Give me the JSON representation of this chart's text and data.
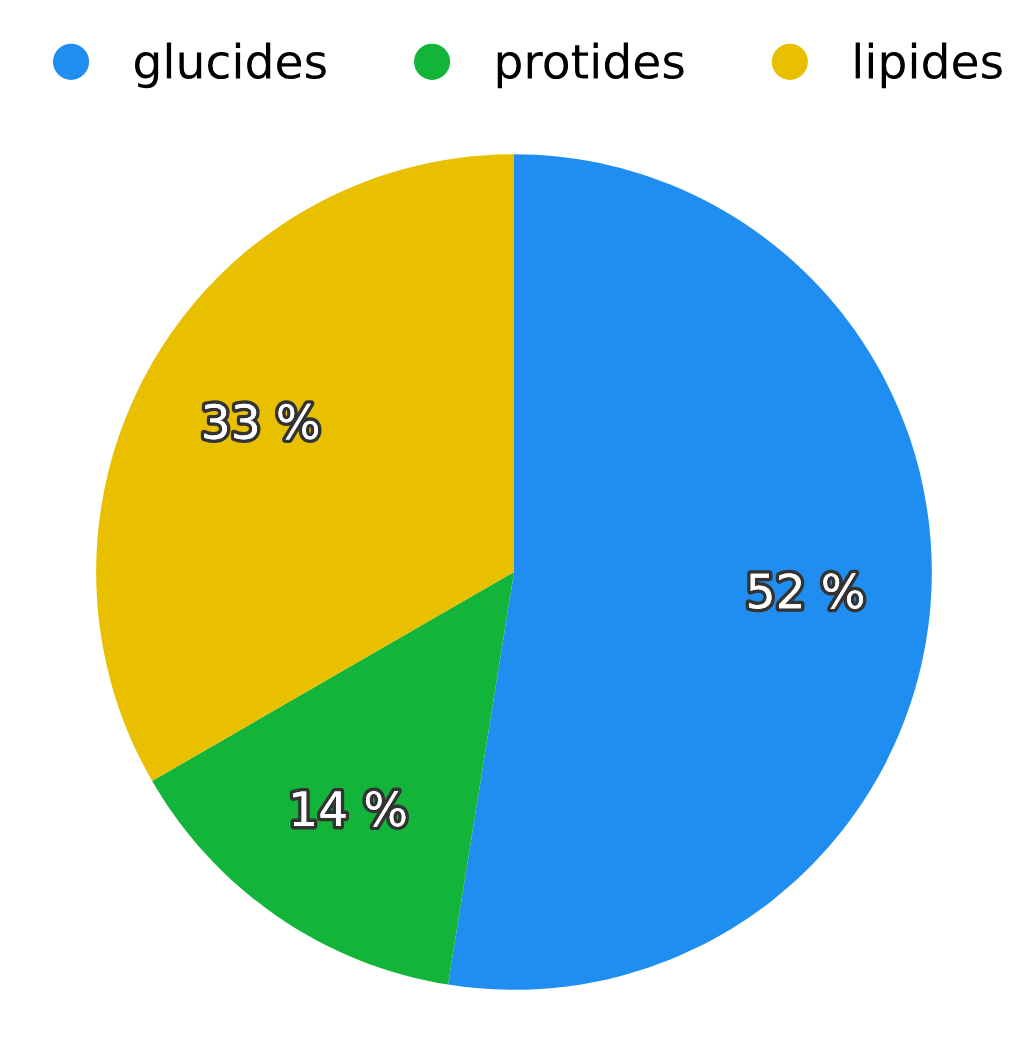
{
  "chart_data": {
    "type": "pie",
    "categories": [
      "glucides",
      "protides",
      "lipides"
    ],
    "values": [
      52,
      14,
      33
    ],
    "colors": [
      "#1f8ef0",
      "#12b53a",
      "#e8c000"
    ],
    "value_labels": [
      "52 %",
      "14 %",
      "33 %"
    ],
    "legend": "top"
  }
}
